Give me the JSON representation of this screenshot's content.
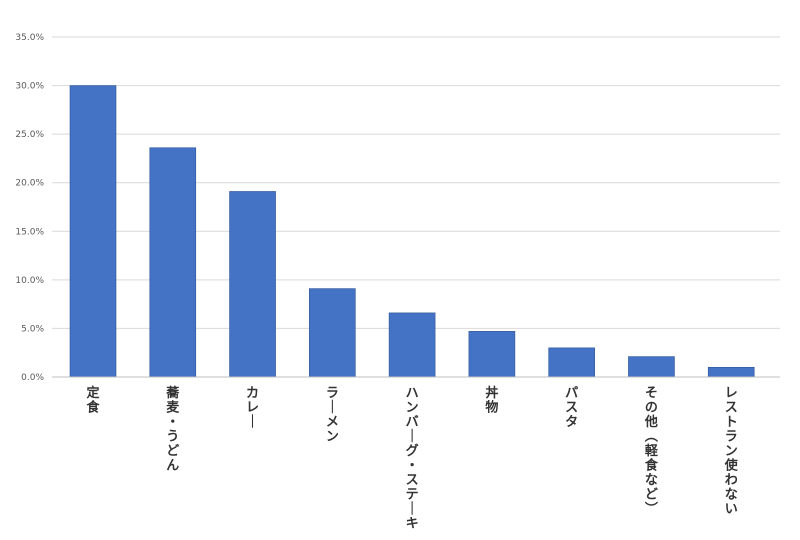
{
  "chart_data": {
    "type": "bar",
    "categories": [
      "定食",
      "蕎麦・うどん",
      "カレー",
      "ラーメン",
      "ハンバーグ・ステーキ",
      "丼物",
      "パスタ",
      "その他（軽食など）",
      "レストラン使わない"
    ],
    "values": [
      30.0,
      23.6,
      19.1,
      9.1,
      6.6,
      4.7,
      3.0,
      2.1,
      1.0
    ],
    "ylim": [
      0,
      35
    ],
    "yticks": [
      "0.0%",
      "5.0%",
      "10.0%",
      "15.0%",
      "20.0%",
      "25.0%",
      "30.0%",
      "35.0%"
    ],
    "grid": true,
    "bar_color": "#4472C4",
    "grid_color": "#d9d9d9"
  }
}
